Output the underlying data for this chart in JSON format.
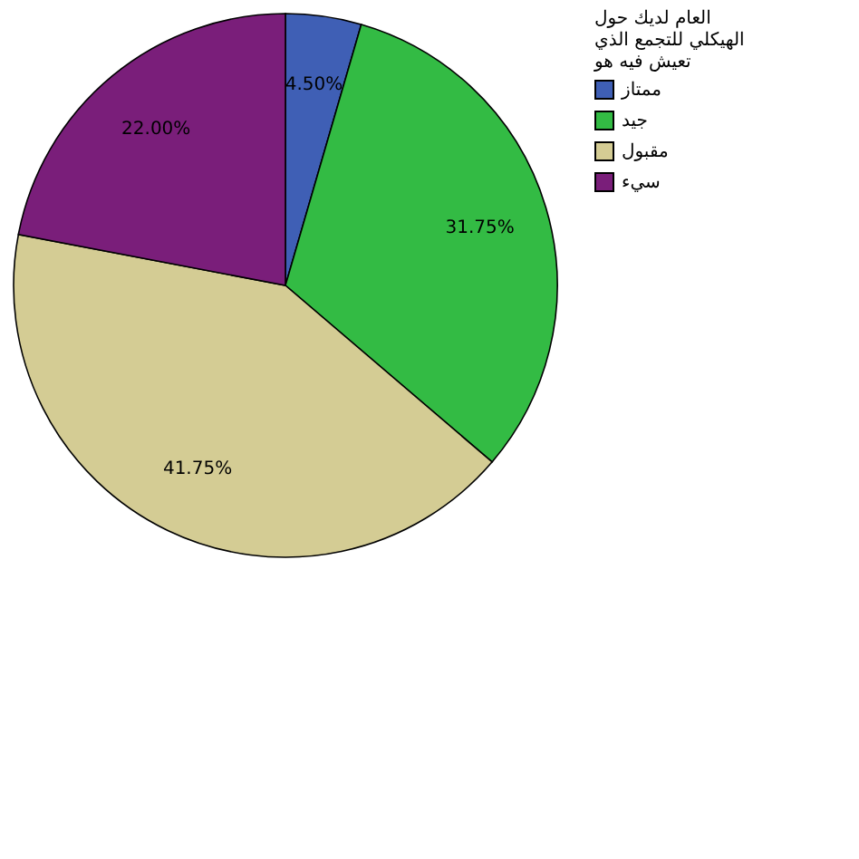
{
  "chart_data": {
    "type": "pie",
    "legend_title": "العام لديك حول الهيكلي للتجمع الذي تعيش فيه هو",
    "categories": [
      "ممتاز",
      "جيد",
      "مقبول",
      "سيء"
    ],
    "values": [
      4.5,
      31.75,
      41.75,
      22.0
    ],
    "value_labels": [
      "4.50%",
      "31.75%",
      "41.75%",
      "22.00%"
    ],
    "colors": [
      "#3f5fb5",
      "#33bb44",
      "#d4cc94",
      "#7a1e7a"
    ],
    "legend": "top right"
  }
}
